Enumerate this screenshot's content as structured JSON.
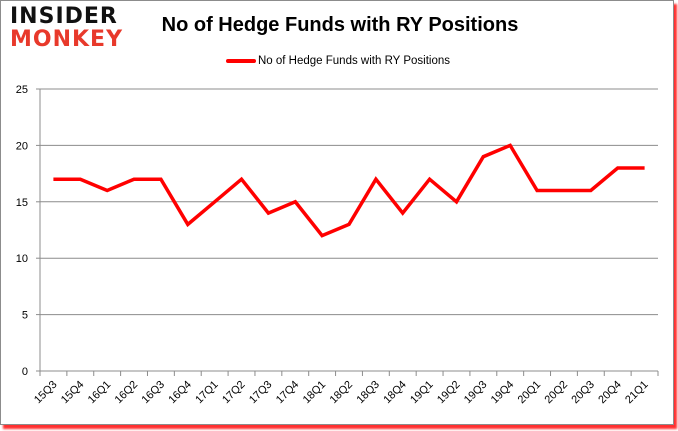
{
  "logo": {
    "line1": "INSIDER",
    "line2": "MONKEY"
  },
  "chart_data": {
    "type": "line",
    "title": "No of Hedge Funds with RY Positions",
    "xlabel": "",
    "ylabel": "",
    "ylim": [
      0,
      25
    ],
    "yticks": [
      0,
      5,
      10,
      15,
      20,
      25
    ],
    "grid": "horizontal",
    "legend_position": "top",
    "categories": [
      "15Q3",
      "15Q4",
      "16Q1",
      "16Q2",
      "16Q3",
      "16Q4",
      "17Q1",
      "17Q2",
      "17Q3",
      "17Q4",
      "18Q1",
      "18Q2",
      "18Q3",
      "18Q4",
      "19Q1",
      "19Q2",
      "19Q3",
      "19Q4",
      "20Q1",
      "20Q2",
      "20Q3",
      "20Q4",
      "21Q1"
    ],
    "series": [
      {
        "name": "No of Hedge Funds with RY Positions",
        "color": "#ff0000",
        "values": [
          17,
          17,
          16,
          17,
          17,
          13,
          15,
          17,
          14,
          15,
          12,
          13,
          17,
          14,
          17,
          15,
          19,
          20,
          16,
          16,
          16,
          18,
          18
        ]
      }
    ]
  }
}
